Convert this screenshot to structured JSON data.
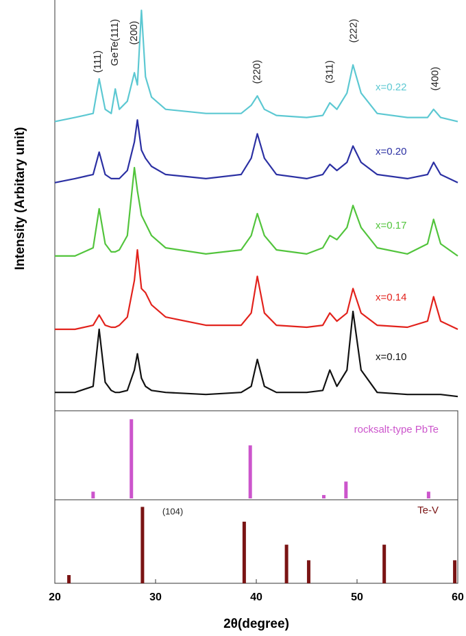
{
  "chart_data": [
    {
      "type": "line",
      "ylabel": "Intensity (Arbitary unit)",
      "xlim": [
        20,
        60
      ],
      "ylim": [
        0,
        100
      ],
      "x": [
        20,
        22,
        23.8,
        24.4,
        25,
        25.6,
        26,
        26.4,
        27.2,
        27.9,
        28.2,
        28.6,
        29,
        29.6,
        31,
        35,
        38.5,
        39.5,
        40.1,
        40.8,
        42,
        45,
        46.6,
        47.3,
        48,
        49,
        49.6,
        50.4,
        52,
        55,
        57,
        57.6,
        58.3,
        60
      ],
      "series": [
        {
          "name": "x=0.22",
          "color": "#5cc8d2",
          "values": [
            71,
            72,
            73,
            81.5,
            74,
            73,
            79,
            74,
            76,
            83,
            80,
            98.3,
            82,
            77,
            74,
            73,
            73,
            75,
            77.3,
            74,
            72.5,
            72,
            72.5,
            75.6,
            74,
            78,
            84.9,
            78,
            73,
            72,
            72,
            74,
            72,
            71
          ]
        },
        {
          "name": "x=0.20",
          "color": "#2b30a3",
          "values": [
            56,
            57,
            58,
            63.5,
            58,
            57,
            57,
            57,
            59,
            66,
            71.4,
            64,
            62,
            60,
            58,
            57,
            58,
            62,
            68,
            62,
            58,
            57,
            58,
            60.5,
            59,
            61,
            65,
            61,
            58,
            57,
            58,
            61,
            58,
            56
          ]
        },
        {
          "name": "x=0.17",
          "color": "#52c43c",
          "values": [
            38,
            38,
            40,
            49.6,
            41,
            39,
            39,
            39.5,
            43,
            59.7,
            54,
            48,
            46,
            43,
            40,
            38.5,
            39.5,
            43,
            48.4,
            43,
            39.5,
            38.5,
            40,
            43,
            42,
            45,
            50.4,
            45,
            40,
            38.5,
            41,
            47,
            41,
            38
          ]
        },
        {
          "name": "x=0.14",
          "color": "#e2221c",
          "values": [
            20,
            20,
            21,
            23.5,
            21,
            20.5,
            20.5,
            21,
            23,
            32,
            39.5,
            30,
            29,
            26,
            23,
            21,
            21,
            24,
            33,
            24,
            21,
            20.5,
            21,
            24,
            22,
            24,
            30,
            24,
            21,
            20.5,
            22,
            28,
            22,
            20
          ]
        },
        {
          "name": "x=0.10",
          "color": "#111111",
          "values": [
            4.5,
            4.5,
            6,
            20,
            7,
            5,
            4.5,
            4.5,
            5,
            10,
            14,
            8,
            6,
            5,
            4.5,
            4,
            4.5,
            6,
            12.6,
            6,
            4.5,
            4.5,
            5,
            10,
            6,
            10,
            24.4,
            10,
            4.5,
            4,
            4,
            4,
            4,
            3.5
          ]
        }
      ],
      "annotations": [
        "(111)",
        "GeTe(111)",
        "(200)",
        "(220)",
        "(311)",
        "(222)",
        "(400)"
      ]
    },
    {
      "type": "stick",
      "name": "rocksalt-type PbTe",
      "color": "#cc55cc",
      "xlim": [
        20,
        60
      ],
      "ylim": [
        0,
        100
      ],
      "x": [
        23.8,
        27.6,
        39.4,
        46.7,
        48.9,
        57.1
      ],
      "values": [
        8,
        94,
        63,
        4,
        20,
        8
      ]
    },
    {
      "type": "stick",
      "name": "Te-V",
      "color": "#7a1414",
      "xlim": [
        20,
        60
      ],
      "ylim": [
        0,
        100
      ],
      "x": [
        21.4,
        28.7,
        38.8,
        43,
        45.2,
        52.7,
        59.7
      ],
      "values": [
        10,
        93,
        75,
        47,
        28,
        47,
        28
      ],
      "annotations": [
        "(104)"
      ],
      "xlabel": "2θ(degree)",
      "xticks": [
        20,
        30,
        40,
        50,
        60
      ]
    }
  ]
}
